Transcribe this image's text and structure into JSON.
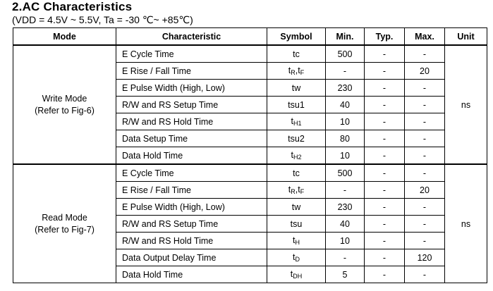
{
  "header": {
    "title": "2.AC Characteristics",
    "conditions": "(VDD = 4.5V ~ 5.5V, Ta = -30 ℃~ +85℃)"
  },
  "table": {
    "columns": [
      "Mode",
      "Characteristic",
      "Symbol",
      "Min.",
      "Typ.",
      "Max.",
      "Unit"
    ],
    "groups": [
      {
        "mode_line1": "Write Mode",
        "mode_line2": "(Refer to Fig-6)",
        "unit": "ns",
        "rows": [
          {
            "characteristic": "E Cycle Time",
            "symbol": "tc",
            "min": "500",
            "typ": "-",
            "max": "-"
          },
          {
            "characteristic": "E Rise / Fall Time",
            "symbol_base": "t",
            "symbol_sub1": "R",
            "symbol_mid": ",t",
            "symbol_sub2": "F",
            "min": "-",
            "typ": "-",
            "max": "20"
          },
          {
            "characteristic": "E Pulse Width (High, Low)",
            "symbol": "tw",
            "min": "230",
            "typ": "-",
            "max": "-"
          },
          {
            "characteristic": "R/W and RS Setup Time",
            "symbol": "tsu1",
            "min": "40",
            "typ": "-",
            "max": "-"
          },
          {
            "characteristic": "R/W and RS Hold Time",
            "symbol_base": "t",
            "symbol_sub": "H1",
            "min": "10",
            "typ": "-",
            "max": "-"
          },
          {
            "characteristic": "Data Setup Time",
            "symbol": "tsu2",
            "min": "80",
            "typ": "-",
            "max": "-"
          },
          {
            "characteristic": "Data Hold Time",
            "symbol_base": "t",
            "symbol_sub": "H2",
            "min": "10",
            "typ": "-",
            "max": "-"
          }
        ]
      },
      {
        "mode_line1": "Read Mode",
        "mode_line2": "(Refer to Fig-7)",
        "unit": "ns",
        "rows": [
          {
            "characteristic": "E Cycle Time",
            "symbol": "tc",
            "min": "500",
            "typ": "-",
            "max": "-"
          },
          {
            "characteristic": "E Rise / Fall Time",
            "symbol_base": "t",
            "symbol_sub1": "R",
            "symbol_mid": ",t",
            "symbol_sub2": "F",
            "min": "-",
            "typ": "-",
            "max": "20"
          },
          {
            "characteristic": "E Pulse Width (High, Low)",
            "symbol": "tw",
            "min": "230",
            "typ": "-",
            "max": "-"
          },
          {
            "characteristic": "R/W and RS Setup Time",
            "symbol": "tsu",
            "min": "40",
            "typ": "-",
            "max": "-"
          },
          {
            "characteristic": "R/W and RS Hold Time",
            "symbol_base": "t",
            "symbol_sub": "H",
            "min": "10",
            "typ": "-",
            "max": "-"
          },
          {
            "characteristic": "Data Output Delay Time",
            "symbol_base": "t",
            "symbol_sub": "D",
            "min": "-",
            "typ": "-",
            "max": "120"
          },
          {
            "characteristic": "Data Hold Time",
            "symbol_base": "t",
            "symbol_sub": "DH",
            "min": "5",
            "typ": "-",
            "max": "-"
          }
        ]
      }
    ]
  }
}
